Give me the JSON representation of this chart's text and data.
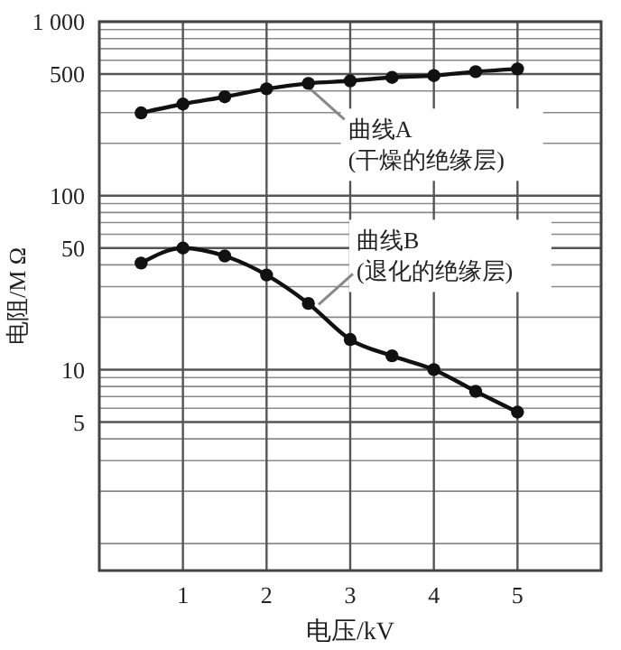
{
  "chart_data": {
    "type": "line",
    "xlabel": "电压/kV",
    "ylabel": "电阻/M Ω",
    "log": "y",
    "grid": true,
    "marker": "circle",
    "line_style": "solid",
    "x": [
      0.5,
      1,
      1.5,
      2,
      2.5,
      3,
      3.5,
      4,
      4.5,
      5
    ],
    "series": [
      {
        "color": "#111111",
        "values": [
          299,
          336,
          370,
          411,
          442,
          457,
          478,
          490,
          516,
          535
        ]
      },
      {
        "color": "#111111",
        "values": [
          41,
          50,
          45,
          35,
          24,
          14.9,
          12,
          10,
          7.5,
          5.7
        ]
      }
    ],
    "xlim": [
      0,
      6
    ],
    "xticks": [
      1,
      2,
      3,
      4,
      5
    ],
    "ylim": [
      0.7,
      1000
    ],
    "yticks": [
      {
        "value": 1,
        "label": null
      },
      {
        "value": 2,
        "label": null
      },
      {
        "value": 3,
        "label": null
      },
      {
        "value": 4,
        "label": null
      },
      5,
      {
        "value": 6,
        "label": null
      },
      {
        "value": 7,
        "label": null
      },
      {
        "value": 8,
        "label": null
      },
      {
        "value": 9,
        "label": null
      },
      10,
      {
        "value": 20,
        "label": null
      },
      {
        "value": 30,
        "label": null
      },
      {
        "value": 40,
        "label": null
      },
      50,
      {
        "value": 60,
        "label": null
      },
      {
        "value": 70,
        "label": null
      },
      {
        "value": 80,
        "label": null
      },
      {
        "value": 90,
        "label": null
      },
      100,
      {
        "value": 200,
        "label": null
      },
      {
        "value": 300,
        "label": null
      },
      {
        "value": 400,
        "label": null
      },
      500,
      {
        "value": 600,
        "label": null
      },
      {
        "value": 700,
        "label": null
      },
      {
        "value": 800,
        "label": null
      },
      {
        "value": 900,
        "label": null
      },
      {
        "value": 1000,
        "label": "1 000"
      }
    ],
    "annotations": [
      {
        "text": "曲线A\n(干燥的绝缘层)",
        "x": 2.5,
        "y": 442
      },
      {
        "text": "曲线B\n(退化的绝缘层)",
        "x": 2.6,
        "y": 22
      }
    ]
  }
}
